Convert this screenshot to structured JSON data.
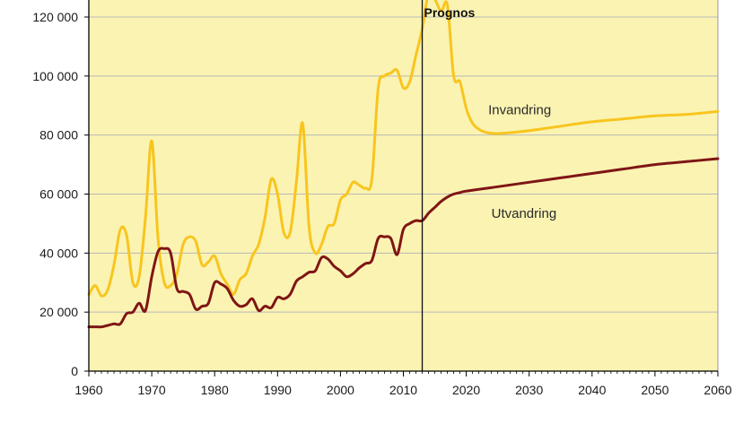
{
  "chart_data": {
    "type": "line",
    "title": "",
    "xlabel": "",
    "ylabel": "",
    "xlim": [
      1960,
      2060
    ],
    "ylim": [
      0,
      130000
    ],
    "x_ticks": [
      1960,
      1970,
      1980,
      1990,
      2000,
      2010,
      2020,
      2030,
      2040,
      2050,
      2060
    ],
    "y_ticks": [
      0,
      20000,
      40000,
      60000,
      80000,
      100000,
      120000
    ],
    "y_tick_labels": [
      "0",
      "20 000",
      "40 000",
      "60 000",
      "80 000",
      "100 000",
      "120 000"
    ],
    "grid": "horizontal",
    "prognosis_year": 2013,
    "prognosis_label": "Prognos",
    "colors": {
      "plot_bg": "#fbf3b2",
      "grid": "#b8b8b8",
      "invandring": "#f8c51e",
      "utvandring": "#7f1515",
      "axis": "#000000"
    },
    "series": [
      {
        "name": "Invandring",
        "x": [
          1960,
          1961,
          1962,
          1963,
          1964,
          1965,
          1966,
          1967,
          1968,
          1969,
          1970,
          1971,
          1972,
          1973,
          1974,
          1975,
          1976,
          1977,
          1978,
          1979,
          1980,
          1981,
          1982,
          1983,
          1984,
          1985,
          1986,
          1987,
          1988,
          1989,
          1990,
          1991,
          1992,
          1993,
          1994,
          1995,
          1996,
          1997,
          1998,
          1999,
          2000,
          2001,
          2002,
          2003,
          2004,
          2005,
          2006,
          2007,
          2008,
          2009,
          2010,
          2011,
          2012,
          2013,
          2014,
          2015,
          2016,
          2017,
          2018,
          2019,
          2020,
          2021,
          2022,
          2023,
          2025,
          2030,
          2035,
          2040,
          2045,
          2050,
          2055,
          2060
        ],
        "values": [
          26000,
          29000,
          25500,
          27500,
          36000,
          48000,
          46000,
          30000,
          32000,
          52000,
          78000,
          45000,
          30000,
          29000,
          33000,
          43000,
          45500,
          44000,
          36000,
          37000,
          39000,
          33000,
          29500,
          26000,
          31000,
          33000,
          39000,
          43000,
          52000,
          65000,
          60000,
          47000,
          47000,
          64000,
          84000,
          49000,
          40000,
          43000,
          49000,
          50000,
          58000,
          60000,
          64000,
          63000,
          62000,
          65000,
          96000,
          100000,
          101000,
          102000,
          96000,
          98000,
          107000,
          116000,
          128000,
          126000,
          122000,
          124000,
          100000,
          98000,
          89000,
          84000,
          82000,
          81000,
          80500,
          81500,
          83000,
          84500,
          85500,
          86500,
          87000,
          88000
        ]
      },
      {
        "name": "Utvandring",
        "x": [
          1960,
          1961,
          1962,
          1963,
          1964,
          1965,
          1966,
          1967,
          1968,
          1969,
          1970,
          1971,
          1972,
          1973,
          1974,
          1975,
          1976,
          1977,
          1978,
          1979,
          1980,
          1981,
          1982,
          1983,
          1984,
          1985,
          1986,
          1987,
          1988,
          1989,
          1990,
          1991,
          1992,
          1993,
          1994,
          1995,
          1996,
          1997,
          1998,
          1999,
          2000,
          2001,
          2002,
          2003,
          2004,
          2005,
          2006,
          2007,
          2008,
          2009,
          2010,
          2011,
          2012,
          2013,
          2014,
          2015,
          2016,
          2017,
          2018,
          2019,
          2020,
          2025,
          2030,
          2035,
          2040,
          2045,
          2050,
          2055,
          2060
        ],
        "values": [
          15000,
          15000,
          15000,
          15500,
          16000,
          16000,
          19500,
          20000,
          23000,
          20500,
          32000,
          40500,
          41500,
          40000,
          28000,
          27000,
          26000,
          21000,
          22000,
          23000,
          30000,
          29500,
          28000,
          24000,
          22000,
          22500,
          24500,
          20500,
          22000,
          21500,
          25000,
          24500,
          26000,
          30500,
          32000,
          33500,
          34000,
          38500,
          38000,
          35500,
          34000,
          32000,
          33000,
          35000,
          36500,
          37500,
          45000,
          45500,
          45000,
          39500,
          48000,
          50000,
          51000,
          51000,
          53500,
          55500,
          57500,
          59000,
          60000,
          60500,
          61000,
          62500,
          64000,
          65500,
          67000,
          68500,
          70000,
          71000,
          72000
        ]
      }
    ],
    "annotations": [
      {
        "text": "Invandring",
        "x": 2023.5,
        "y": 87000
      },
      {
        "text": "Utvandring",
        "x": 2024,
        "y": 52000
      }
    ]
  }
}
